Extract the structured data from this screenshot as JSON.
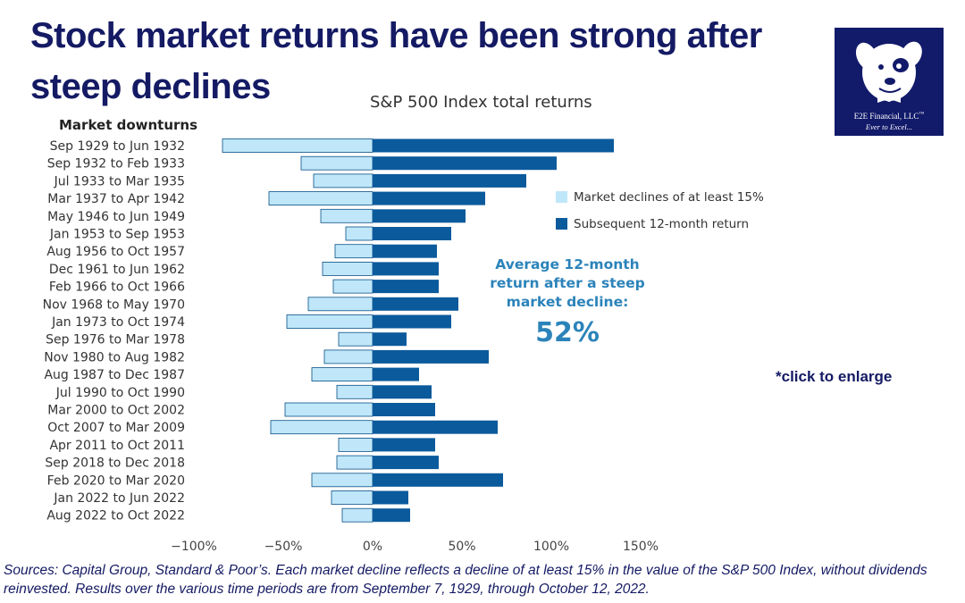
{
  "headline": "Stock market returns have been strong after steep declines",
  "sources": "Sources: Capital Group, Standard & Poor’s. Each market decline reflects a decline of at least 15% in the value of the S&P 500 Index, without dividends reinvested. Results over the various time periods are from September 7, 1929, through October 12, 2022.",
  "callout": {
    "text": "Average 12-month return after a steep market decline:",
    "value": "52%"
  },
  "click_note": "*click to enlarge",
  "logo": {
    "name": "E2E Financial, LLC",
    "trademark": "™",
    "tagline": "Ever to Excel..."
  },
  "colors": {
    "decline": "#bfe7f9",
    "return": "#0b5a9c",
    "headline": "#141a63",
    "callout": "#2b83ba"
  },
  "chart_data": {
    "type": "bar",
    "orientation": "horizontal",
    "title": "S&P 500 Index total returns",
    "ylabel": "Market downturns",
    "xlim": [
      -100,
      150
    ],
    "xticks": [
      -100,
      -50,
      0,
      50,
      100,
      150
    ],
    "xtick_labels": [
      "−100%",
      "−50%",
      "0%",
      "50%",
      "100%",
      "150%"
    ],
    "categories": [
      "Sep 1929 to Jun 1932",
      "Sep 1932 to Feb 1933",
      "Jul 1933 to Mar 1935",
      "Mar 1937 to Apr 1942",
      "May 1946 to Jun 1949",
      "Jan 1953 to Sep 1953",
      "Aug 1956 to Oct 1957",
      "Dec 1961 to Jun 1962",
      "Feb 1966 to Oct 1966",
      "Nov 1968 to May 1970",
      "Jan 1973 to Oct 1974",
      "Sep 1976 to Mar 1978",
      "Nov 1980 to Aug 1982",
      "Aug 1987 to Dec 1987",
      "Jul 1990 to Oct 1990",
      "Mar 2000 to Oct 2002",
      "Oct 2007 to Mar 2009",
      "Apr 2011 to Oct 2011",
      "Sep 2018 to Dec 2018",
      "Feb 2020 to Mar 2020",
      "Jan 2022 to Jun 2022",
      "Aug 2022 to Oct 2022"
    ],
    "series": [
      {
        "name": "Market declines of at least 15%",
        "color": "#bfe7f9",
        "values": [
          -84,
          -40,
          -33,
          -58,
          -29,
          -15,
          -21,
          -28,
          -22,
          -36,
          -48,
          -19,
          -27,
          -34,
          -20,
          -49,
          -57,
          -19,
          -20,
          -34,
          -23,
          -17
        ]
      },
      {
        "name": "Subsequent 12-month return",
        "color": "#0b5a9c",
        "values": [
          135,
          103,
          86,
          63,
          52,
          44,
          36,
          37,
          37,
          48,
          44,
          19,
          65,
          26,
          33,
          35,
          70,
          35,
          37,
          73,
          20,
          21
        ]
      }
    ],
    "legend": "right",
    "grid": false
  }
}
